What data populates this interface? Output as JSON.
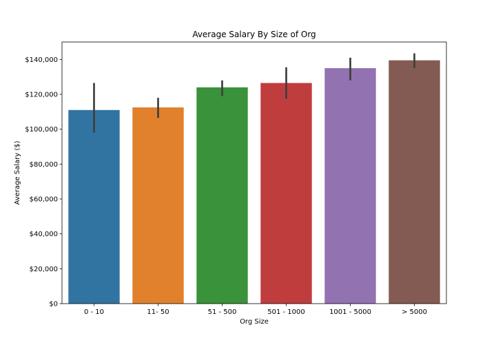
{
  "chart_data": {
    "type": "bar",
    "title": "Average Salary By Size of Org",
    "xlabel": "Org Size",
    "ylabel": "Average Salary ($)",
    "categories": [
      "0 - 10",
      "11- 50",
      "51 - 500",
      "501 - 1000",
      "1001 - 5000",
      "> 5000"
    ],
    "values": [
      111000,
      112500,
      124000,
      126500,
      135000,
      139500
    ],
    "error_low": [
      98000,
      106500,
      119000,
      117500,
      128000,
      135000
    ],
    "error_high": [
      126500,
      118000,
      128000,
      135500,
      141000,
      143500
    ],
    "colors": [
      "#3274a1",
      "#e1812c",
      "#3a923a",
      "#c03d3e",
      "#9372b2",
      "#845b53"
    ],
    "error_color": "#3f3f3f",
    "ylim": [
      0,
      150000
    ],
    "yticks": [
      0,
      20000,
      40000,
      60000,
      80000,
      100000,
      120000,
      140000
    ],
    "ytick_labels": [
      "$0",
      "$20,000",
      "$40,000",
      "$60,000",
      "$80,000",
      "$100,000",
      "$120,000",
      "$140,000"
    ],
    "grid": false,
    "legend": "none"
  }
}
